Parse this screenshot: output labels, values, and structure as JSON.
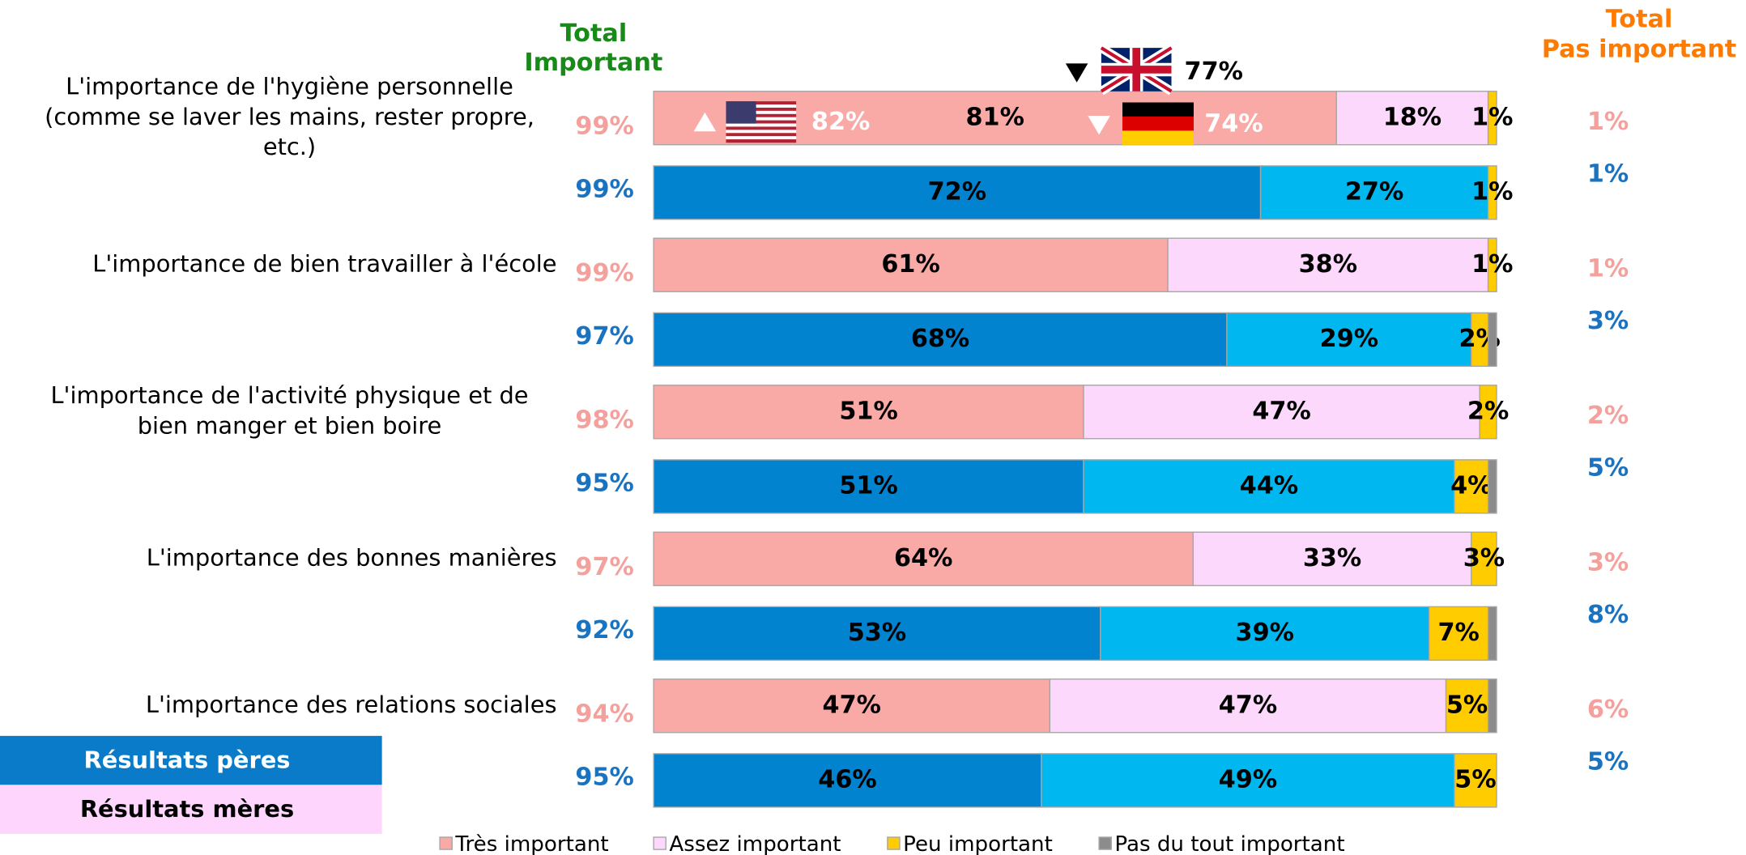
{
  "chart_data": {
    "type": "stacked_bar_h",
    "xlim": [
      0,
      100
    ],
    "categories": [
      [
        "L'importance de l'hygiène personnelle",
        "(comme se laver les mains, rester propre,",
        "etc.)"
      ],
      [
        "L'importance de bien travailler à l'école"
      ],
      [
        "L'importance de l'activité physique et de",
        "bien manger et bien boire"
      ],
      [
        "L'importance des bonnes manières"
      ],
      [
        "L'importance des relations sociales"
      ]
    ],
    "total_important_header": [
      "Total",
      "Important"
    ],
    "total_pas_important_header": [
      "Total",
      "Pas important"
    ],
    "groups": [
      {
        "name": "Résultats mères",
        "box_color": "#fdd5fd",
        "text_color": "#000000",
        "total_color": "#f4a09c",
        "series": [
          {
            "name": "Très important",
            "color": "#f9aaa6",
            "values": [
              81,
              61,
              51,
              64,
              47
            ],
            "value_labels": [
              "81%",
              "61%",
              "51%",
              "64%",
              "47%"
            ]
          },
          {
            "name": "Assez important",
            "color": "#fdd8fd",
            "values": [
              18,
              38,
              47,
              33,
              47
            ],
            "value_labels": [
              "18%",
              "38%",
              "47%",
              "33%",
              "47%"
            ]
          },
          {
            "name": "Peu important",
            "color": "#ffcc00",
            "values": [
              1,
              1,
              2,
              3,
              5
            ],
            "value_labels": [
              "1%",
              "1%",
              "2%",
              "3%",
              "5%"
            ]
          },
          {
            "name": "Pas du tout important",
            "color": "#8c8c8c",
            "values": [
              0,
              0,
              0,
              0,
              1
            ],
            "value_labels": [
              null,
              null,
              null,
              null,
              null
            ]
          }
        ],
        "total_important": [
          99,
          99,
          98,
          97,
          94
        ],
        "total_important_labels": [
          "99%",
          "99%",
          "98%",
          "97%",
          "94%"
        ],
        "total_pas_important": [
          1,
          1,
          2,
          3,
          6
        ],
        "total_pas_important_labels": [
          "1%",
          "1%",
          "2%",
          "3%",
          "6%"
        ]
      },
      {
        "name": "Résultats pères",
        "box_color": "#0a7bc8",
        "text_color": "#ffffff",
        "total_color": "#1a73c0",
        "series": [
          {
            "color": "#0283cf",
            "values": [
              72,
              68,
              51,
              53,
              46
            ],
            "value_labels": [
              "72%",
              "68%",
              "51%",
              "53%",
              "46%"
            ]
          },
          {
            "color": "#00b8ef",
            "values": [
              27,
              29,
              44,
              39,
              49
            ],
            "value_labels": [
              "27%",
              "29%",
              "44%",
              "39%",
              "49%"
            ]
          },
          {
            "color": "#ffcc00",
            "values": [
              1,
              2,
              4,
              7,
              5
            ],
            "value_labels": [
              "1%",
              "2%",
              "4%",
              "7%",
              "5%"
            ]
          },
          {
            "color": "#8c8c8c",
            "values": [
              0,
              1,
              1,
              1,
              0
            ],
            "value_labels": [
              null,
              null,
              null,
              null,
              null
            ]
          }
        ],
        "total_important": [
          99,
          97,
          95,
          92,
          95
        ],
        "total_important_labels": [
          "99%",
          "97%",
          "95%",
          "92%",
          "95%"
        ],
        "total_pas_important": [
          1,
          3,
          5,
          8,
          5
        ],
        "total_pas_important_labels": [
          "1%",
          "3%",
          "5%",
          "8%",
          "5%"
        ]
      }
    ],
    "annotations": [
      {
        "flag": "US",
        "direction": "up",
        "value": 82,
        "label": "82%",
        "color": "#ffffff"
      },
      {
        "flag": "DE",
        "direction": "down",
        "value": 74,
        "label": "74%",
        "color": "#ffffff"
      },
      {
        "flag": "UK",
        "direction": "down",
        "value": 77,
        "label": "77%",
        "color": "#000000"
      }
    ]
  }
}
